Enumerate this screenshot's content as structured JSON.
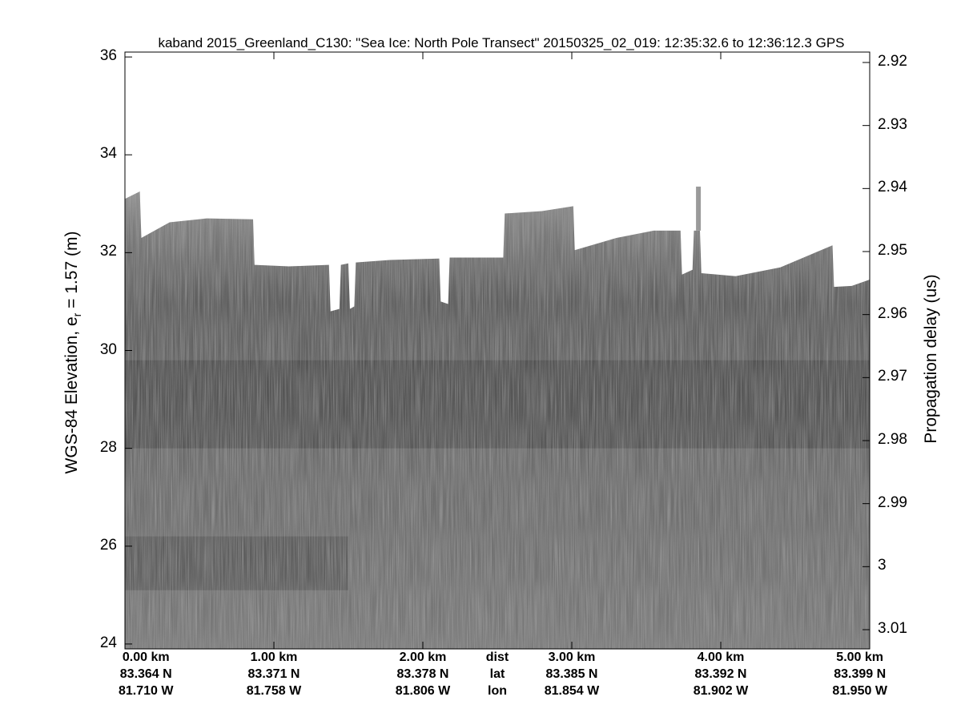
{
  "chart_data": {
    "type": "heatmap",
    "title": "kaband 2015_Greenland_C130: \"Sea Ice: North Pole Transect\"  20150325_02_019: 12:35:32.6 to 12:36:12.3 GPS",
    "ylabel_left_main": "WGS-84 Elevation, e",
    "ylabel_left_sub": "r",
    "ylabel_left_tail": " = 1.57 (m)",
    "ylabel_right": "Propagation delay (us)",
    "ylim": [
      23.9,
      36.1
    ],
    "yticks_left": [
      "24",
      "26",
      "28",
      "30",
      "32",
      "34",
      "36"
    ],
    "yticks_left_values": [
      24,
      26,
      28,
      30,
      32,
      34,
      36
    ],
    "yticks_right": [
      "2.92",
      "2.93",
      "2.94",
      "2.95",
      "2.96",
      "2.97",
      "2.98",
      "2.99",
      "3",
      "3.01"
    ],
    "yticks_right_values": [
      2.92,
      2.93,
      2.94,
      2.95,
      2.96,
      2.97,
      2.98,
      2.99,
      3.0,
      3.01
    ],
    "xlim_km": [
      0,
      5
    ],
    "xticks": [
      {
        "dist": "0.00 km",
        "lat": "83.364 N",
        "lon": "81.710 W",
        "km": 0
      },
      {
        "dist": "1.00 km",
        "lat": "83.371 N",
        "lon": "81.758 W",
        "km": 1
      },
      {
        "dist": "2.00 km",
        "lat": "83.378 N",
        "lon": "81.806 W",
        "km": 2
      },
      {
        "dist": "3.00 km",
        "lat": "83.385 N",
        "lon": "81.854 W",
        "km": 3
      },
      {
        "dist": "4.00 km",
        "lat": "83.392 N",
        "lon": "81.902 W",
        "km": 4
      },
      {
        "dist": "5.00 km",
        "lat": "83.399 N",
        "lon": "81.950 W",
        "km": 5
      }
    ],
    "row_labels": {
      "dist": "dist",
      "lat": "lat",
      "lon": "lon",
      "km": 2.5
    },
    "surface_top_elevation": [
      [
        0.0,
        33.1
      ],
      [
        0.1,
        33.25
      ],
      [
        0.11,
        32.3
      ],
      [
        0.3,
        32.62
      ],
      [
        0.55,
        32.7
      ],
      [
        0.86,
        32.68
      ],
      [
        0.87,
        31.75
      ],
      [
        1.1,
        31.72
      ],
      [
        1.37,
        31.75
      ],
      [
        1.38,
        30.8
      ],
      [
        1.44,
        30.85
      ],
      [
        1.45,
        31.75
      ],
      [
        1.5,
        31.78
      ],
      [
        1.51,
        30.85
      ],
      [
        1.54,
        30.9
      ],
      [
        1.55,
        31.8
      ],
      [
        1.78,
        31.85
      ],
      [
        2.11,
        31.88
      ],
      [
        2.12,
        31.0
      ],
      [
        2.17,
        30.95
      ],
      [
        2.18,
        31.9
      ],
      [
        2.54,
        31.9
      ],
      [
        2.55,
        32.8
      ],
      [
        2.8,
        32.85
      ],
      [
        3.01,
        32.95
      ],
      [
        3.02,
        32.05
      ],
      [
        3.3,
        32.3
      ],
      [
        3.55,
        32.45
      ],
      [
        3.73,
        32.45
      ],
      [
        3.74,
        31.55
      ],
      [
        3.81,
        31.65
      ],
      [
        3.82,
        32.45
      ],
      [
        3.86,
        32.45
      ],
      [
        3.87,
        31.58
      ],
      [
        4.1,
        31.52
      ],
      [
        4.4,
        31.7
      ],
      [
        4.75,
        32.15
      ],
      [
        4.76,
        31.3
      ],
      [
        4.88,
        31.32
      ],
      [
        5.0,
        31.45
      ]
    ],
    "spike": {
      "km": 3.85,
      "top": 33.35,
      "bottom": 32.45
    },
    "surface_bottom_elevation": 29.4,
    "lower_layer_elevation": 25.7,
    "colormap": "gray"
  }
}
